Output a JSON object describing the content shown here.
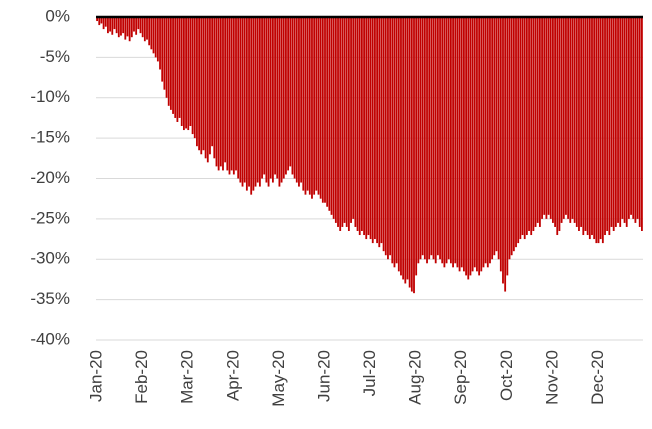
{
  "chart_data": {
    "type": "bar",
    "color": "#c00000",
    "grid": true,
    "ylim": [
      -40,
      0
    ],
    "yticks": [
      {
        "value": 0,
        "label": "0%"
      },
      {
        "value": -5,
        "label": "-5%"
      },
      {
        "value": -10,
        "label": "-10%"
      },
      {
        "value": -15,
        "label": "-15%"
      },
      {
        "value": -20,
        "label": "-20%"
      },
      {
        "value": -25,
        "label": "-25%"
      },
      {
        "value": -30,
        "label": "-30%"
      },
      {
        "value": -35,
        "label": "-35%"
      },
      {
        "value": -40,
        "label": "-40%"
      }
    ],
    "categories": [
      "Jan-20",
      null,
      null,
      null,
      null,
      null,
      null,
      null,
      null,
      null,
      null,
      null,
      null,
      null,
      null,
      null,
      null,
      null,
      null,
      null,
      null,
      "Feb-20",
      null,
      null,
      null,
      null,
      null,
      null,
      null,
      null,
      null,
      null,
      null,
      null,
      null,
      null,
      null,
      null,
      null,
      null,
      null,
      null,
      "Mar-20",
      null,
      null,
      null,
      null,
      null,
      null,
      null,
      null,
      null,
      null,
      null,
      null,
      null,
      null,
      null,
      null,
      null,
      null,
      null,
      null,
      "Apr-20",
      null,
      null,
      null,
      null,
      null,
      null,
      null,
      null,
      null,
      null,
      null,
      null,
      null,
      null,
      null,
      null,
      null,
      null,
      null,
      null,
      "May-20",
      null,
      null,
      null,
      null,
      null,
      null,
      null,
      null,
      null,
      null,
      null,
      null,
      null,
      null,
      null,
      null,
      null,
      null,
      null,
      null,
      "Jun-20",
      null,
      null,
      null,
      null,
      null,
      null,
      null,
      null,
      null,
      null,
      null,
      null,
      null,
      null,
      null,
      null,
      null,
      null,
      null,
      null,
      "Jul-20",
      null,
      null,
      null,
      null,
      null,
      null,
      null,
      null,
      null,
      null,
      null,
      null,
      null,
      null,
      null,
      null,
      null,
      null,
      null,
      null,
      "Aug-20",
      null,
      null,
      null,
      null,
      null,
      null,
      null,
      null,
      null,
      null,
      null,
      null,
      null,
      null,
      null,
      null,
      null,
      null,
      null,
      null,
      "Sep-20",
      null,
      null,
      null,
      null,
      null,
      null,
      null,
      null,
      null,
      null,
      null,
      null,
      null,
      null,
      null,
      null,
      null,
      null,
      null,
      null,
      "Oct-20",
      null,
      null,
      null,
      null,
      null,
      null,
      null,
      null,
      null,
      null,
      null,
      null,
      null,
      null,
      null,
      null,
      null,
      null,
      null,
      null,
      "Nov-20",
      null,
      null,
      null,
      null,
      null,
      null,
      null,
      null,
      null,
      null,
      null,
      null,
      null,
      null,
      null,
      null,
      null,
      null,
      null,
      null,
      "Dec-20",
      null,
      null,
      null,
      null,
      null,
      null,
      null,
      null,
      null,
      null,
      null,
      null,
      null,
      null,
      null,
      null,
      null,
      null,
      null,
      null
    ],
    "values": [
      -0.5,
      -1,
      -0.8,
      -1.5,
      -1.2,
      -2,
      -1.8,
      -2.2,
      -1.5,
      -2,
      -2.5,
      -2.3,
      -2,
      -2.8,
      -2.4,
      -3,
      -2.5,
      -1.8,
      -2.2,
      -1.5,
      -2,
      -2.5,
      -3,
      -2.8,
      -3.5,
      -4,
      -4.5,
      -5,
      -5.5,
      -6.5,
      -8,
      -9,
      -10,
      -11,
      -11.5,
      -12,
      -12.5,
      -13,
      -12.5,
      -13.5,
      -14,
      -13.8,
      -14,
      -13.5,
      -14.5,
      -15,
      -16,
      -16.5,
      -17,
      -16.5,
      -17.5,
      -18,
      -17,
      -16,
      -17.5,
      -18.5,
      -19,
      -18.5,
      -19,
      -18,
      -19,
      -19.5,
      -19,
      -19.5,
      -19,
      -20,
      -20.5,
      -21,
      -20.5,
      -21.5,
      -21,
      -22,
      -21.5,
      -21,
      -20.5,
      -21,
      -20,
      -19.5,
      -20.5,
      -21,
      -20,
      -20.5,
      -19.5,
      -20,
      -21,
      -20.5,
      -20,
      -19.5,
      -19,
      -18.5,
      -19.5,
      -20,
      -20.5,
      -21,
      -20.5,
      -21.5,
      -22,
      -21.5,
      -22,
      -22.5,
      -22,
      -21.5,
      -22,
      -22.5,
      -23,
      -23,
      -23.5,
      -24,
      -24.5,
      -25,
      -25.5,
      -26,
      -26.5,
      -26,
      -25.5,
      -26,
      -26.5,
      -25.5,
      -25,
      -26,
      -26.5,
      -27,
      -26.5,
      -27,
      -27.5,
      -27,
      -27.5,
      -28,
      -27.5,
      -28,
      -28.5,
      -28,
      -29,
      -29.5,
      -30,
      -29.5,
      -30.5,
      -31,
      -30.5,
      -31.5,
      -32,
      -32.5,
      -33,
      -32.5,
      -33.5,
      -34,
      -34.2,
      -32,
      -30.5,
      -30,
      -29.5,
      -30,
      -30.5,
      -30,
      -29.5,
      -30,
      -30.5,
      -29.5,
      -30,
      -30.5,
      -31,
      -30.5,
      -30,
      -30.5,
      -31,
      -30.5,
      -31,
      -31.5,
      -31,
      -31.5,
      -32,
      -32.5,
      -32,
      -31.5,
      -31,
      -31.5,
      -32,
      -31.5,
      -31,
      -30.5,
      -31,
      -30.5,
      -30,
      -29.5,
      -29,
      -30,
      -31.5,
      -33,
      -34,
      -32,
      -30,
      -29.5,
      -29,
      -28.5,
      -28,
      -27.5,
      -27,
      -27.5,
      -27,
      -26.5,
      -27,
      -26.5,
      -26,
      -25.5,
      -26,
      -25,
      -24.5,
      -25,
      -24.5,
      -25,
      -25.5,
      -26,
      -27,
      -26.5,
      -25.5,
      -25,
      -24.5,
      -25,
      -25.5,
      -25,
      -25.5,
      -26,
      -26.5,
      -26,
      -27,
      -26.5,
      -27,
      -27.5,
      -27,
      -27.5,
      -28,
      -28,
      -27.5,
      -28,
      -27,
      -26.5,
      -27,
      -26,
      -26.5,
      -26,
      -25.5,
      -26,
      -25,
      -25.5,
      -26,
      -25,
      -24.5,
      -25,
      -25.5,
      -25,
      -26,
      -26.5
    ]
  }
}
